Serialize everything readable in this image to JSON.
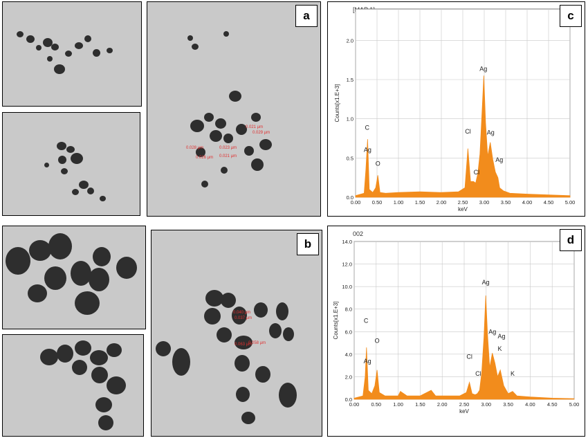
{
  "panels": {
    "a": {
      "label": "a"
    },
    "b": {
      "label": "b"
    },
    "c": {
      "label": "c"
    },
    "d": {
      "label": "d"
    }
  },
  "tem_measurements": {
    "a_large": [
      "0.021 µm",
      "0.029 µm",
      "0.028 µm",
      "0.023 µm",
      "0.026 µm",
      "0.021 µm"
    ],
    "b_large": [
      "0.040 µm",
      "0.037 µm",
      "0.063 µm",
      "0.058 µm"
    ]
  },
  "chart_data": [
    {
      "type": "line",
      "panel": "c",
      "header": "[MAP 1]",
      "xlabel": "keV",
      "ylabel": "Counts[x1.E+3]",
      "xlim": [
        0.0,
        5.0
      ],
      "ylim": [
        0.0,
        2.4
      ],
      "xticks": [
        "0.00",
        "0.50",
        "1.00",
        "1.50",
        "2.00",
        "2.50",
        "3.00",
        "3.50",
        "4.00",
        "4.50",
        "5.00"
      ],
      "yticks": [
        "0.0",
        "0.5",
        "1.0",
        "1.5",
        "2.0"
      ],
      "color": "#f28c1c",
      "x": [
        0.0,
        0.2,
        0.24,
        0.28,
        0.32,
        0.4,
        0.47,
        0.52,
        0.57,
        0.7,
        1.0,
        1.5,
        2.0,
        2.4,
        2.55,
        2.62,
        2.68,
        2.75,
        2.8,
        2.85,
        2.9,
        2.95,
        2.99,
        3.03,
        3.08,
        3.14,
        3.2,
        3.26,
        3.32,
        3.36,
        3.45,
        3.6,
        4.0,
        4.5,
        5.0
      ],
      "y": [
        0.02,
        0.05,
        0.35,
        0.74,
        0.1,
        0.06,
        0.12,
        0.28,
        0.06,
        0.05,
        0.06,
        0.07,
        0.06,
        0.07,
        0.12,
        0.62,
        0.2,
        0.2,
        0.18,
        0.3,
        0.55,
        1.1,
        1.55,
        0.95,
        0.52,
        0.7,
        0.48,
        0.32,
        0.25,
        0.12,
        0.08,
        0.05,
        0.04,
        0.03,
        0.02
      ],
      "peaks": [
        {
          "label": "C",
          "x": 0.27,
          "y": 0.86
        },
        {
          "label": "Ag",
          "x": 0.28,
          "y": 0.58
        },
        {
          "label": "O",
          "x": 0.52,
          "y": 0.4
        },
        {
          "label": "Cl",
          "x": 2.62,
          "y": 0.81
        },
        {
          "label": "Cl",
          "x": 2.82,
          "y": 0.29
        },
        {
          "label": "Ag",
          "x": 2.98,
          "y": 1.61
        },
        {
          "label": "Ag",
          "x": 3.15,
          "y": 0.8
        },
        {
          "label": "Ag",
          "x": 3.35,
          "y": 0.45
        }
      ]
    },
    {
      "type": "line",
      "panel": "d",
      "header": "002",
      "xlabel": "keV",
      "ylabel": "Counts[x1.E+3]",
      "xlim": [
        0.0,
        5.0
      ],
      "ylim": [
        0.0,
        14.0
      ],
      "xticks": [
        "0.00",
        "0.50",
        "1.00",
        "1.50",
        "2.00",
        "2.50",
        "3.00",
        "3.50",
        "4.00",
        "4.50",
        "5.00"
      ],
      "yticks": [
        "0.0",
        "2.0",
        "4.0",
        "6.0",
        "8.0",
        "10.0",
        "12.0",
        "14.0"
      ],
      "color": "#f28c1c",
      "x": [
        0.0,
        0.2,
        0.25,
        0.28,
        0.32,
        0.4,
        0.47,
        0.52,
        0.57,
        0.7,
        1.0,
        1.05,
        1.2,
        1.5,
        1.75,
        1.85,
        2.0,
        2.4,
        2.55,
        2.62,
        2.68,
        2.75,
        2.8,
        2.85,
        2.9,
        2.95,
        2.99,
        3.03,
        3.08,
        3.14,
        3.2,
        3.26,
        3.32,
        3.4,
        3.5,
        3.6,
        3.7,
        4.0,
        4.5,
        5.0
      ],
      "y": [
        0.1,
        0.3,
        2.0,
        4.6,
        0.8,
        0.5,
        1.2,
        2.6,
        0.6,
        0.3,
        0.3,
        0.7,
        0.3,
        0.3,
        0.8,
        0.3,
        0.3,
        0.3,
        0.6,
        1.5,
        0.5,
        0.4,
        0.5,
        0.8,
        2.4,
        5.5,
        9.2,
        5.8,
        2.8,
        4.1,
        3.2,
        2.0,
        2.6,
        1.2,
        0.5,
        0.7,
        0.3,
        0.2,
        0.1,
        0.05
      ],
      "peaks": [
        {
          "label": "C",
          "x": 0.27,
          "y": 6.8
        },
        {
          "label": "Ag",
          "x": 0.3,
          "y": 3.2
        },
        {
          "label": "O",
          "x": 0.52,
          "y": 5.0
        },
        {
          "label": "Cl",
          "x": 2.62,
          "y": 3.6
        },
        {
          "label": "Cl",
          "x": 2.82,
          "y": 2.1
        },
        {
          "label": "Ag",
          "x": 2.99,
          "y": 10.2
        },
        {
          "label": "Ag",
          "x": 3.14,
          "y": 5.8
        },
        {
          "label": "Ag",
          "x": 3.35,
          "y": 5.4
        },
        {
          "label": "K",
          "x": 3.31,
          "y": 4.3
        },
        {
          "label": "K",
          "x": 3.6,
          "y": 2.1
        }
      ]
    }
  ]
}
